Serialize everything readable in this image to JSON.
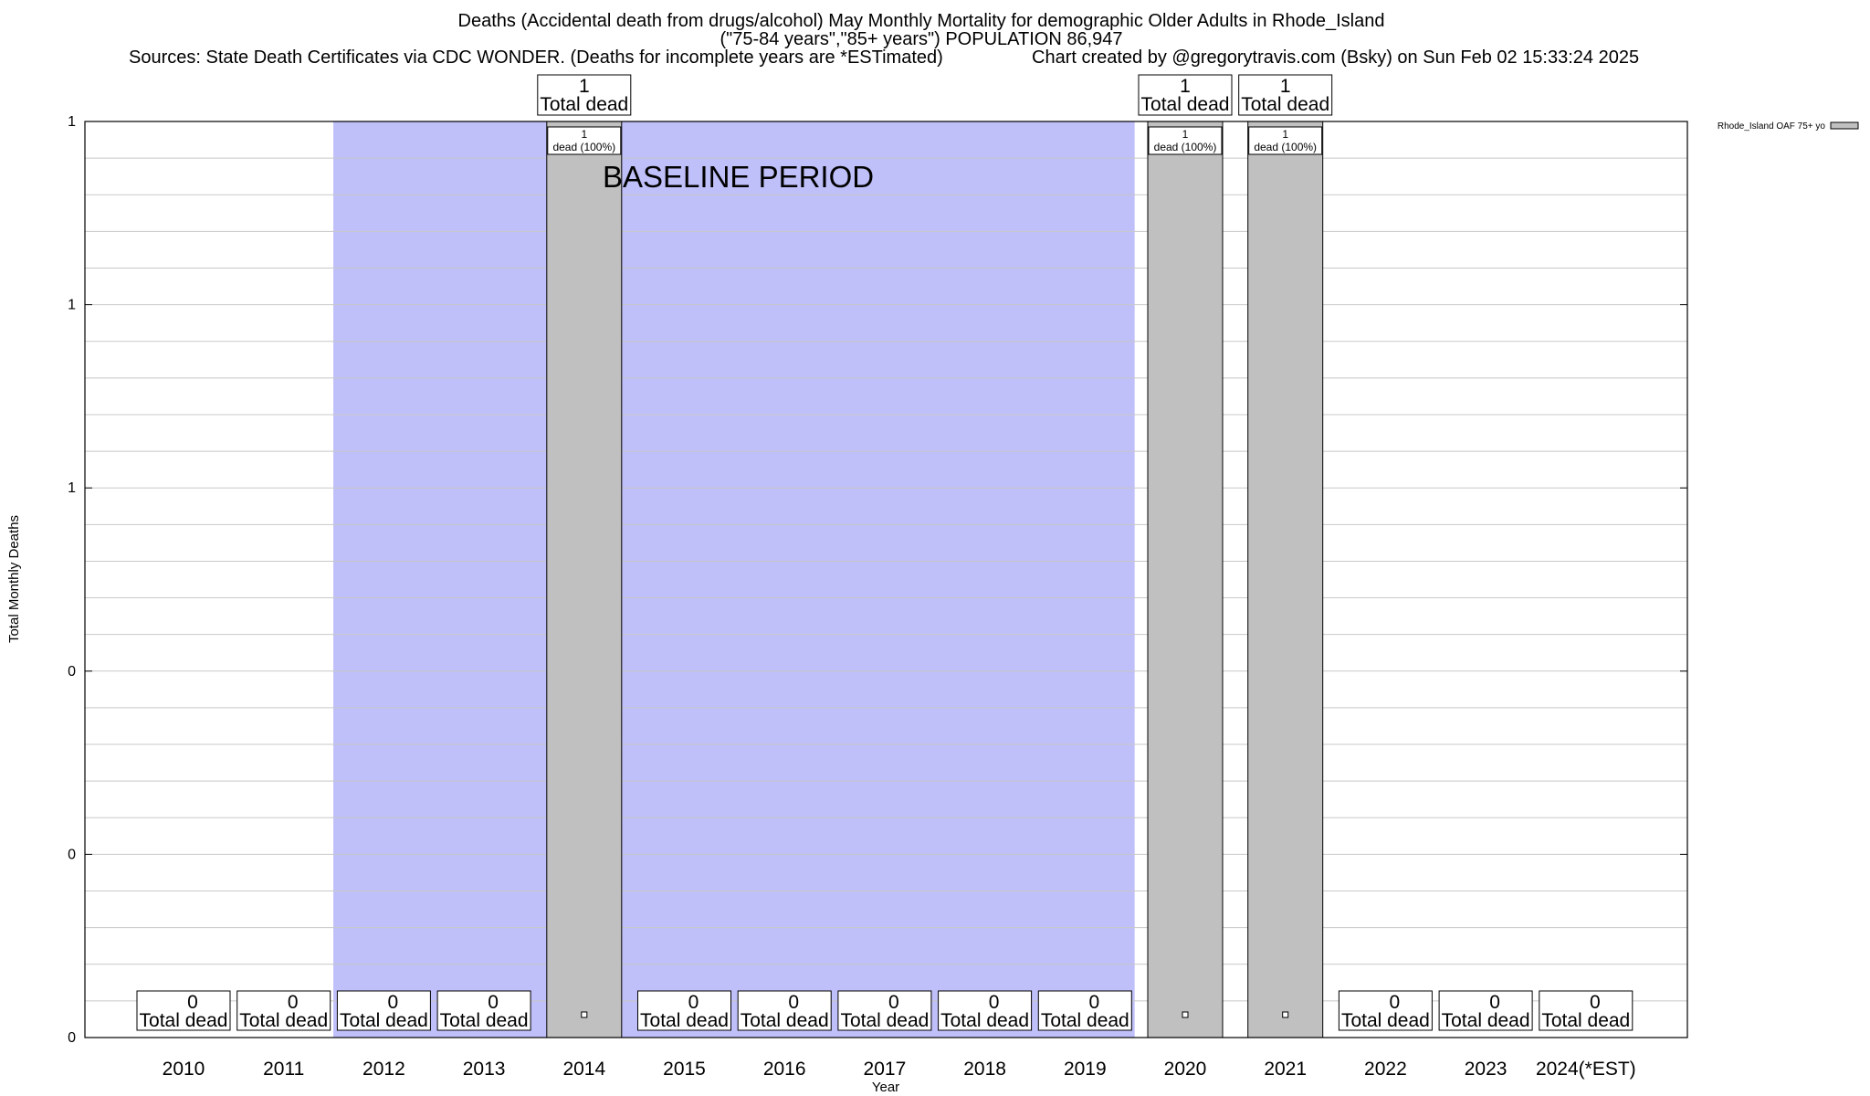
{
  "header": {
    "title": "Deaths (Accidental death from drugs/alcohol) May Monthly Mortality for demographic Older Adults in Rhode_Island",
    "subtitle": "(\"75-84 years\",\"85+ years\") POPULATION 86,947",
    "sources": "Sources: State Death Certificates via CDC WONDER. (Deaths for incomplete years are *ESTimated)",
    "credit": "Chart created by @gregorytravis.com (Bsky) on Sun Feb 02 15:33:24 2025"
  },
  "chart_data": {
    "type": "bar",
    "categories": [
      "2010",
      "2011",
      "2012",
      "2013",
      "2014",
      "2015",
      "2016",
      "2017",
      "2018",
      "2019",
      "2020",
      "2021",
      "2022",
      "2023",
      "2024(*EST)"
    ],
    "series": [
      {
        "name": "Rhode_Island OAF 75+ yo",
        "values": [
          0,
          0,
          0,
          0,
          1,
          0,
          0,
          0,
          0,
          0,
          1,
          1,
          0,
          0,
          0
        ],
        "color": "#c0c0c0"
      }
    ],
    "xlabel": "Year",
    "ylabel": "Total Monthly Deaths",
    "ylim": [
      0,
      1
    ],
    "ytick_values": [
      0,
      0.2,
      0.4,
      0.6,
      0.8,
      1.0
    ],
    "ytick_labels": [
      "0",
      "0",
      "0",
      "1",
      "1",
      "1"
    ],
    "grid": true,
    "legend_position": "top-right",
    "total_label": "Total dead",
    "pct_label_suffix": "dead (100%)",
    "baseline": {
      "label": "BASELINE PERIOD",
      "start_index": 2,
      "end_index": 9,
      "color": "#bfbff9"
    }
  }
}
